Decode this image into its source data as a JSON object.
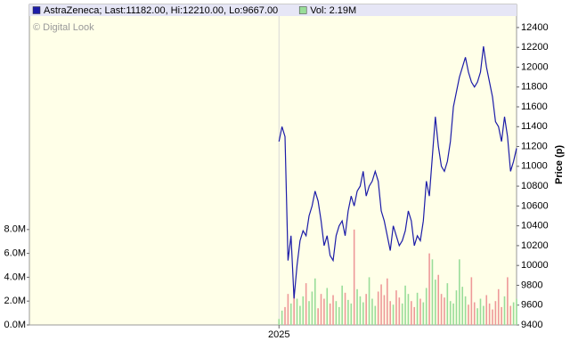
{
  "chart_data": {
    "type": "line",
    "watermark": "© Digital Look",
    "y2_label": "Price (p)",
    "x": [
      0,
      1,
      2,
      3,
      4,
      5,
      6,
      7,
      8,
      9,
      10,
      11,
      12,
      13,
      14,
      15,
      16,
      17,
      18,
      19,
      20,
      21,
      22,
      23,
      24,
      25,
      26,
      27,
      28,
      29,
      30,
      31,
      32,
      33,
      34,
      35,
      36,
      37,
      38,
      39,
      40,
      41,
      42,
      43,
      44,
      45,
      46,
      47,
      48,
      49,
      50,
      51,
      52,
      53,
      54,
      55,
      56,
      57,
      58,
      59,
      60,
      61,
      62,
      63,
      64,
      65,
      66,
      67,
      68,
      69,
      70,
      71,
      72,
      73,
      74,
      75,
      76,
      77,
      78,
      79
    ],
    "xlim": [
      -83,
      79
    ],
    "xticks": [
      {
        "value": 0,
        "label": "2025"
      }
    ],
    "ylim": [
      0,
      25.9
    ],
    "yticks": [
      {
        "value": 0,
        "label": "0.0M"
      },
      {
        "value": 2,
        "label": "2.0M"
      },
      {
        "value": 4,
        "label": "4.0M"
      },
      {
        "value": 6,
        "label": "6.0M"
      },
      {
        "value": 8,
        "label": "8.0M"
      }
    ],
    "y2lim": [
      9400,
      12516
    ],
    "y2ticks": [
      9400,
      9600,
      9800,
      10000,
      10200,
      10400,
      10600,
      10800,
      11000,
      11200,
      11400,
      11600,
      11800,
      12000,
      12200,
      12400
    ],
    "series": [
      {
        "name": "AstraZeneca; Last:11182.00, Hi:12210.00, Lo:9667.00",
        "color": "#1c1ca8",
        "axis": "y2",
        "values": [
          11250,
          11400,
          11300,
          10050,
          10300,
          9667,
          10000,
          10250,
          10350,
          10300,
          10500,
          10600,
          10750,
          10650,
          10450,
          10200,
          10300,
          10100,
          10050,
          10300,
          10400,
          10450,
          10300,
          10550,
          10700,
          10600,
          10750,
          10800,
          10950,
          10700,
          10800,
          10850,
          10950,
          10850,
          10550,
          10450,
          10300,
          10150,
          10400,
          10300,
          10200,
          10250,
          10350,
          10550,
          10450,
          10200,
          10300,
          10250,
          10450,
          10850,
          10700,
          11100,
          11500,
          11200,
          11000,
          10950,
          11050,
          11250,
          11600,
          11750,
          11900,
          12000,
          12100,
          11950,
          11850,
          11800,
          11850,
          11950,
          12210,
          12000,
          11850,
          11700,
          11450,
          11400,
          11250,
          11500,
          11300,
          10950,
          11050,
          11182
        ]
      },
      {
        "name": "Vol: 2.19M",
        "type": "bar",
        "color": "#99dd99",
        "down_color": "#ee9999",
        "values": [
          0.5,
          1.2,
          1.5,
          2.6,
          1.8,
          3.0,
          2.2,
          1.6,
          2.4,
          3.5,
          2.0,
          2.8,
          3.9,
          1.4,
          2.6,
          2.2,
          3.1,
          1.8,
          2.5,
          2.0,
          1.5,
          3.3,
          2.7,
          2.1,
          1.8,
          8.0,
          3.0,
          2.4,
          1.9,
          2.6,
          4.0,
          2.2,
          1.6,
          2.8,
          3.4,
          2.5,
          3.9,
          2.0,
          1.7,
          2.9,
          2.3,
          1.8,
          3.3,
          2.6,
          2.0,
          1.5,
          2.7,
          2.2,
          1.9,
          3.1,
          6.0,
          5.5,
          3.8,
          4.2,
          2.6,
          2.3,
          3.5,
          2.0,
          1.8,
          2.9,
          5.5,
          3.2,
          2.4,
          1.7,
          4.0,
          1.9,
          1.4,
          2.2,
          1.6,
          2.5,
          1.8,
          1.3,
          2.0,
          3.0,
          1.5,
          2.4,
          4.0,
          1.6,
          1.9,
          2.19
        ]
      }
    ],
    "grid": true
  }
}
